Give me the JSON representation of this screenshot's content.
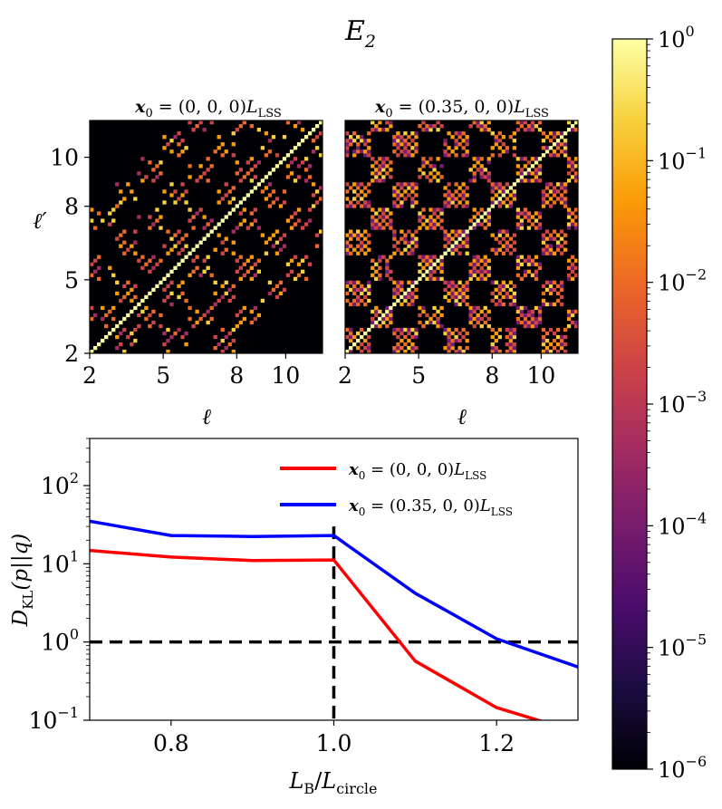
{
  "figure": {
    "suptitle": "E",
    "suptitle_sub": "2"
  },
  "chart_data": [
    {
      "type": "heatmap",
      "title": {
        "bold": "x",
        "sub": "0",
        "rest": " = (0, 0, 0)",
        "L": "L",
        "Lsub": "LSS"
      },
      "xlabel": "ℓ",
      "ylabel": "ℓ′",
      "ticks": [
        2,
        5,
        8,
        10
      ],
      "ell_range": [
        2,
        11.5
      ],
      "block_pattern": "sparse-diagonal",
      "colorscale": "inferno-log"
    },
    {
      "type": "heatmap",
      "title": {
        "bold": "x",
        "sub": "0",
        "rest": " = (0.35, 0, 0)",
        "L": "L",
        "Lsub": "LSS"
      },
      "xlabel": "ℓ",
      "ylabel": "",
      "ticks": [
        2,
        5,
        8,
        10
      ],
      "ell_range": [
        2,
        11.5
      ],
      "block_pattern": "dense-checkerboard",
      "colorscale": "inferno-log"
    },
    {
      "type": "line",
      "xlabel": {
        "main": "L",
        "sub": "B",
        "slash": "/",
        "main2": "L",
        "sub2": "circle"
      },
      "ylabel": {
        "main": "D",
        "sub": "KL",
        "rest": "(p||q)"
      },
      "xlim": [
        0.7,
        1.3
      ],
      "ylim": [
        0.1,
        400
      ],
      "yscale": "log",
      "xticks": [
        "0.8",
        "1.0",
        "1.2"
      ],
      "yticks": [
        {
          "base": "10",
          "exp": "−1",
          "value": 0.1
        },
        {
          "base": "10",
          "exp": "0",
          "value": 1
        },
        {
          "base": "10",
          "exp": "1",
          "value": 10
        },
        {
          "base": "10",
          "exp": "2",
          "value": 100
        }
      ],
      "legend_position": "top-right",
      "series": [
        {
          "name": {
            "bold": "x",
            "sub": "0",
            "rest": " = (0, 0, 0)",
            "L": "L",
            "Lsub": "LSS"
          },
          "color": "#ff0000",
          "x": [
            0.7,
            0.8,
            0.9,
            1.0,
            1.1,
            1.2,
            1.3
          ],
          "y": [
            14.8,
            12.2,
            11.0,
            11.2,
            0.57,
            0.145,
            0.07
          ]
        },
        {
          "name": {
            "bold": "x",
            "sub": "0",
            "rest": " = (0.35, 0, 0)",
            "L": "L",
            "Lsub": "LSS"
          },
          "color": "#0000ff",
          "x": [
            0.7,
            0.8,
            0.9,
            1.0,
            1.1,
            1.2,
            1.3
          ],
          "y": [
            35,
            23,
            22.3,
            23,
            4.2,
            1.1,
            0.48
          ]
        }
      ],
      "reference_lines": {
        "horizontal_y": 1.0,
        "vertical_x": 1.0
      }
    },
    {
      "type": "colorbar",
      "scale": "log",
      "range": [
        1e-06,
        1
      ],
      "ticks": [
        {
          "base": "10",
          "exp": "0"
        },
        {
          "base": "10",
          "exp": "−1"
        },
        {
          "base": "10",
          "exp": "−2"
        },
        {
          "base": "10",
          "exp": "−3"
        },
        {
          "base": "10",
          "exp": "−4"
        },
        {
          "base": "10",
          "exp": "−5"
        },
        {
          "base": "10",
          "exp": "−6"
        }
      ],
      "colors": [
        "#000004",
        "#1b0c41",
        "#4a0c6b",
        "#781c6d",
        "#a52c60",
        "#cf4446",
        "#ed6925",
        "#fb9b06",
        "#f7d13d",
        "#fcffa4"
      ]
    }
  ]
}
